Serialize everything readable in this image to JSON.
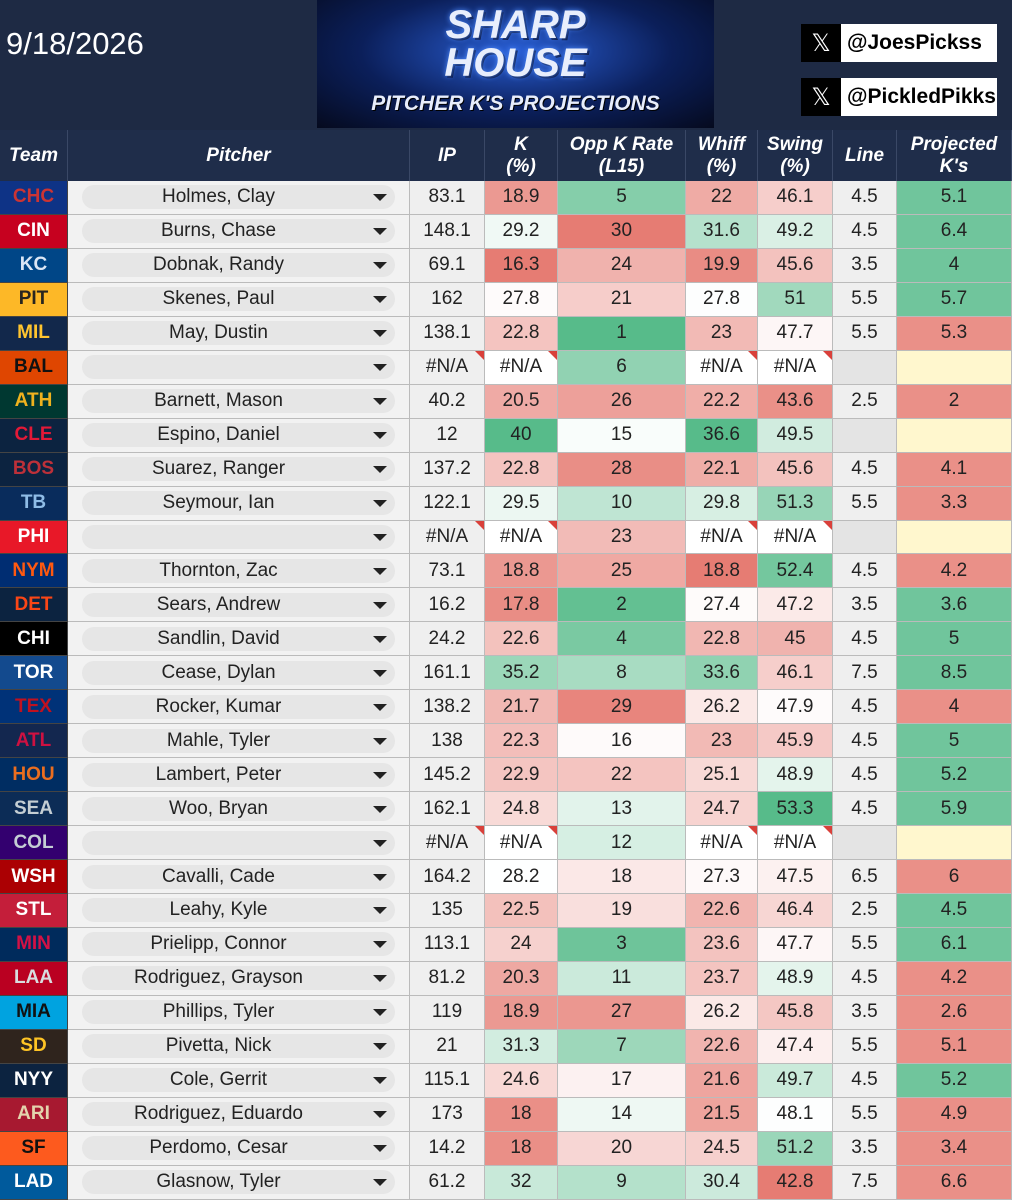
{
  "header": {
    "date": "9/18/2026",
    "logo": {
      "line1": "SHARP",
      "line2": "HOUSE",
      "subtitle": "PITCHER K'S PROJECTIONS"
    },
    "socials": [
      "@JoesPickss",
      "@PickledPikks"
    ]
  },
  "table": {
    "columns": [
      [
        "Team"
      ],
      [
        "Pitcher"
      ],
      [
        "IP"
      ],
      [
        "K",
        "(%)"
      ],
      [
        "Opp K Rate",
        "(L15)"
      ],
      [
        "Whiff",
        "(%)"
      ],
      [
        "Swing",
        "(%)"
      ],
      [
        "Line"
      ],
      [
        "Projected",
        "K's"
      ]
    ],
    "rows": [
      [
        "CHC",
        "Holmes, Clay",
        83.1,
        18.9,
        5,
        22,
        46.1,
        4.5,
        5.1
      ],
      [
        "CIN",
        "Burns, Chase",
        148.1,
        29.2,
        30,
        31.6,
        49.2,
        4.5,
        6.4
      ],
      [
        "KC",
        "Dobnak, Randy",
        69.1,
        16.3,
        24,
        19.9,
        45.6,
        3.5,
        4
      ],
      [
        "PIT",
        "Skenes, Paul",
        162,
        27.8,
        21,
        27.8,
        51,
        5.5,
        5.7
      ],
      [
        "MIL",
        "May, Dustin",
        138.1,
        22.8,
        1,
        23,
        47.7,
        5.5,
        5.3
      ],
      [
        "BAL",
        null,
        "#N/A",
        "#N/A",
        6,
        "#N/A",
        "#N/A",
        null,
        null
      ],
      [
        "ATH",
        "Barnett, Mason",
        40.2,
        20.5,
        26,
        22.2,
        43.6,
        2.5,
        2
      ],
      [
        "CLE",
        "Espino, Daniel",
        12,
        40,
        15,
        36.6,
        49.5,
        null,
        null
      ],
      [
        "BOS",
        "Suarez, Ranger",
        137.2,
        22.8,
        28,
        22.1,
        45.6,
        4.5,
        4.1
      ],
      [
        "TB",
        "Seymour, Ian",
        122.1,
        29.5,
        10,
        29.8,
        51.3,
        5.5,
        3.3
      ],
      [
        "PHI",
        null,
        "#N/A",
        "#N/A",
        23,
        "#N/A",
        "#N/A",
        null,
        null
      ],
      [
        "NYM",
        "Thornton, Zac",
        73.1,
        18.8,
        25,
        18.8,
        52.4,
        4.5,
        4.2
      ],
      [
        "DET",
        "Sears, Andrew",
        16.2,
        17.8,
        2,
        27.4,
        47.2,
        3.5,
        3.6
      ],
      [
        "CHI",
        "Sandlin, David",
        24.2,
        22.6,
        4,
        22.8,
        45,
        4.5,
        5
      ],
      [
        "TOR",
        "Cease, Dylan",
        161.1,
        35.2,
        8,
        33.6,
        46.1,
        7.5,
        8.5
      ],
      [
        "TEX",
        "Rocker, Kumar",
        138.2,
        21.7,
        29,
        26.2,
        47.9,
        4.5,
        4
      ],
      [
        "ATL",
        "Mahle, Tyler",
        138,
        22.3,
        16,
        23,
        45.9,
        4.5,
        5
      ],
      [
        "HOU",
        "Lambert, Peter",
        145.2,
        22.9,
        22,
        25.1,
        48.9,
        4.5,
        5.2
      ],
      [
        "SEA",
        "Woo, Bryan",
        162.1,
        24.8,
        13,
        24.7,
        53.3,
        4.5,
        5.9
      ],
      [
        "COL",
        null,
        "#N/A",
        "#N/A",
        12,
        "#N/A",
        "#N/A",
        null,
        null
      ],
      [
        "WSH",
        "Cavalli, Cade",
        164.2,
        28.2,
        18,
        27.3,
        47.5,
        6.5,
        6
      ],
      [
        "STL",
        "Leahy, Kyle",
        135,
        22.5,
        19,
        22.6,
        46.4,
        2.5,
        4.5
      ],
      [
        "MIN",
        "Prielipp, Connor",
        113.1,
        24,
        3,
        23.6,
        47.7,
        5.5,
        6.1
      ],
      [
        "LAA",
        "Rodriguez, Grayson",
        81.2,
        20.3,
        11,
        23.7,
        48.9,
        4.5,
        4.2
      ],
      [
        "MIA",
        "Phillips, Tyler",
        119,
        18.9,
        27,
        26.2,
        45.8,
        3.5,
        2.6
      ],
      [
        "SD",
        "Pivetta, Nick",
        21,
        31.3,
        7,
        22.6,
        47.4,
        5.5,
        5.1
      ],
      [
        "NYY",
        "Cole, Gerrit",
        115.1,
        24.6,
        17,
        21.6,
        49.7,
        4.5,
        5.2
      ],
      [
        "ARI",
        "Rodriguez, Eduardo",
        173,
        18,
        14,
        21.5,
        48.1,
        5.5,
        4.9
      ],
      [
        "SF",
        "Perdomo, Cesar",
        14.2,
        18,
        20,
        24.5,
        51.2,
        3.5,
        3.4
      ],
      [
        "LAD",
        "Glasnow, Tyler",
        61.2,
        32,
        9,
        30.4,
        42.8,
        7.5,
        6.6
      ]
    ],
    "team_colors": [
      [
        "#0e3386",
        "#cc3433"
      ],
      [
        "#c6011f",
        "#ffffff"
      ],
      [
        "#004687",
        "#dbe6f5"
      ],
      [
        "#fdb827",
        "#27251f"
      ],
      [
        "#12284b",
        "#ffc52f"
      ],
      [
        "#df4601",
        "#111111"
      ],
      [
        "#003831",
        "#efb21e"
      ],
      [
        "#0c2340",
        "#e31937"
      ],
      [
        "#0c2340",
        "#bd3039"
      ],
      [
        "#092c5c",
        "#8fbce6"
      ],
      [
        "#e81828",
        "#ffffff"
      ],
      [
        "#002d72",
        "#ff5910"
      ],
      [
        "#0c2340",
        "#fa4616"
      ],
      [
        "#000000",
        "#ffffff"
      ],
      [
        "#134a8e",
        "#ffffff"
      ],
      [
        "#003278",
        "#c0111f"
      ],
      [
        "#13274f",
        "#ce1141"
      ],
      [
        "#002d62",
        "#eb6e1f"
      ],
      [
        "#0c2c56",
        "#c4ced4"
      ],
      [
        "#33006f",
        "#c4ced4"
      ],
      [
        "#ab0003",
        "#ffffff"
      ],
      [
        "#c41e3a",
        "#ffffff"
      ],
      [
        "#002b5c",
        "#d31145"
      ],
      [
        "#ba0021",
        "#d8dde0"
      ],
      [
        "#00a3e0",
        "#111111"
      ],
      [
        "#2f241d",
        "#ffc425"
      ],
      [
        "#0c2340",
        "#ffffff"
      ],
      [
        "#a71930",
        "#e3d4ad"
      ],
      [
        "#fd5a1e",
        "#111111"
      ],
      [
        "#005a9c",
        "#ffffff"
      ]
    ]
  }
}
